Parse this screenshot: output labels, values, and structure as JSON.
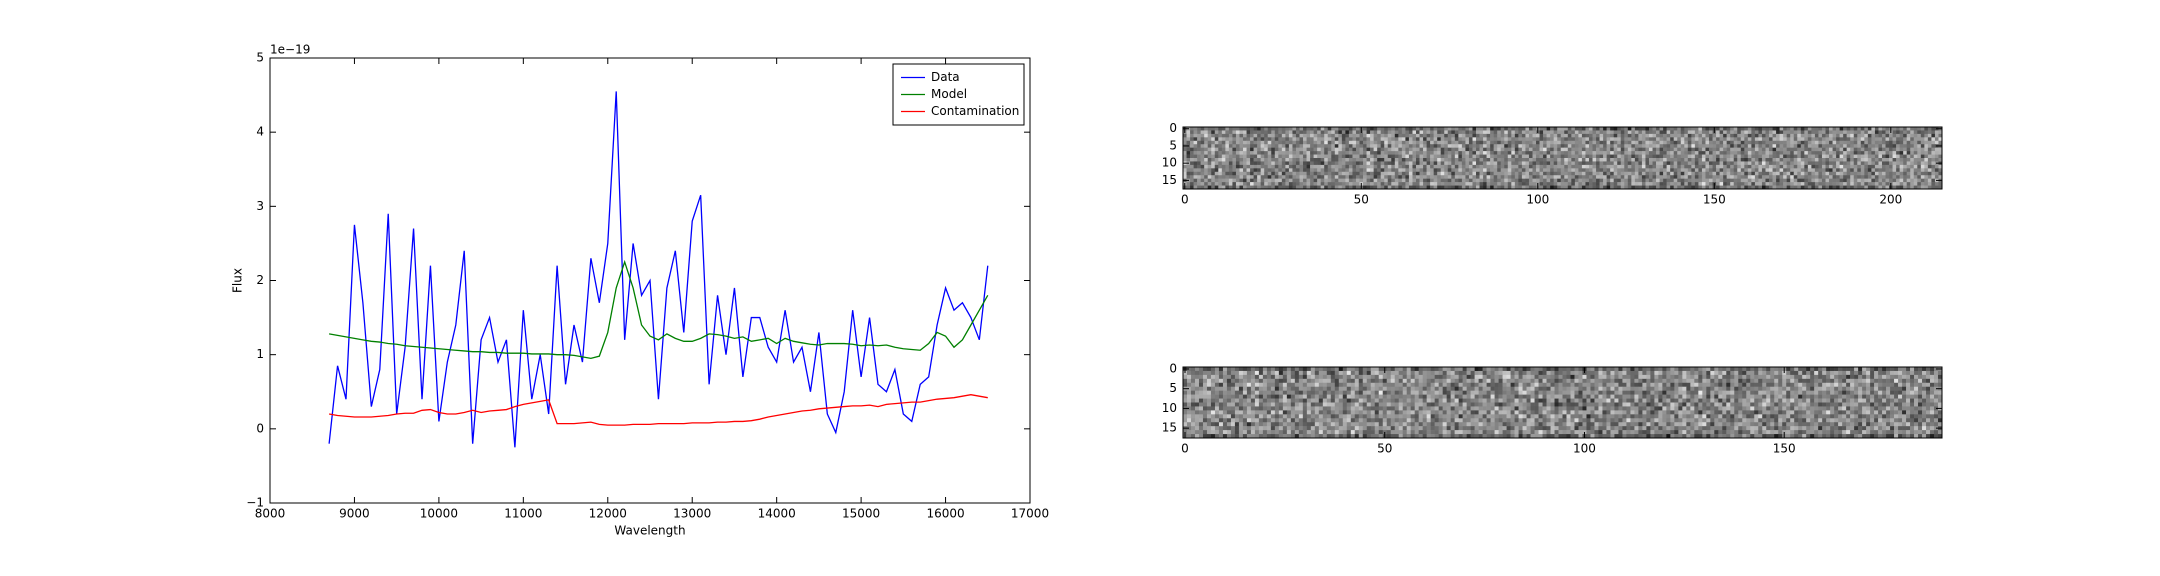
{
  "chart_data": [
    {
      "type": "line",
      "xlabel": "Wavelength",
      "ylabel": "Flux",
      "offset_label": "1e−19",
      "xlim": [
        8000,
        17000
      ],
      "xticks": [
        8000,
        9000,
        10000,
        11000,
        12000,
        13000,
        14000,
        15000,
        16000,
        17000
      ],
      "ylim": [
        -1,
        5
      ],
      "yticks": [
        {
          "value": -1,
          "label": "−1"
        },
        0,
        1,
        2,
        3,
        4,
        5
      ],
      "legend": "upper right",
      "x": [
        8700,
        8800,
        8900,
        9000,
        9100,
        9200,
        9300,
        9400,
        9500,
        9600,
        9700,
        9800,
        9900,
        10000,
        10100,
        10200,
        10300,
        10400,
        10500,
        10600,
        10700,
        10800,
        10900,
        11000,
        11100,
        11200,
        11300,
        11400,
        11500,
        11600,
        11700,
        11800,
        11900,
        12000,
        12100,
        12200,
        12300,
        12400,
        12500,
        12600,
        12700,
        12800,
        12900,
        13000,
        13100,
        13200,
        13300,
        13400,
        13500,
        13600,
        13700,
        13800,
        13900,
        14000,
        14100,
        14200,
        14300,
        14400,
        14500,
        14600,
        14700,
        14800,
        14900,
        15000,
        15100,
        15200,
        15300,
        15400,
        15500,
        15600,
        15700,
        15800,
        15900,
        16000,
        16100,
        16200,
        16300,
        16400,
        16500
      ],
      "series": [
        {
          "name": "Data",
          "color": "#0000ff",
          "values": [
            -0.2,
            0.85,
            0.4,
            2.75,
            1.7,
            0.3,
            0.8,
            2.9,
            0.2,
            1.1,
            2.7,
            0.4,
            2.2,
            0.1,
            0.9,
            1.4,
            2.4,
            -0.2,
            1.2,
            1.5,
            0.9,
            1.2,
            -0.25,
            1.6,
            0.4,
            1.0,
            0.2,
            2.2,
            0.6,
            1.4,
            0.9,
            2.3,
            1.7,
            2.5,
            4.55,
            1.2,
            2.5,
            1.8,
            2.0,
            0.4,
            1.9,
            2.4,
            1.3,
            2.8,
            3.15,
            0.6,
            1.8,
            1.0,
            1.9,
            0.7,
            1.5,
            1.5,
            1.1,
            0.9,
            1.6,
            0.9,
            1.1,
            0.5,
            1.3,
            0.2,
            -0.05,
            0.5,
            1.6,
            0.7,
            1.5,
            0.6,
            0.5,
            0.8,
            0.2,
            0.1,
            0.6,
            0.7,
            1.4,
            1.9,
            1.6,
            1.7,
            1.5,
            1.2,
            2.2
          ]
        },
        {
          "name": "Model",
          "color": "#008000",
          "values": [
            1.28,
            1.26,
            1.24,
            1.22,
            1.2,
            1.18,
            1.17,
            1.15,
            1.14,
            1.12,
            1.11,
            1.1,
            1.09,
            1.08,
            1.07,
            1.06,
            1.05,
            1.04,
            1.04,
            1.03,
            1.03,
            1.02,
            1.02,
            1.02,
            1.01,
            1.01,
            1.01,
            1.0,
            1.0,
            0.99,
            0.97,
            0.95,
            0.98,
            1.3,
            1.9,
            2.25,
            1.9,
            1.4,
            1.25,
            1.2,
            1.28,
            1.22,
            1.18,
            1.18,
            1.22,
            1.28,
            1.27,
            1.25,
            1.22,
            1.24,
            1.18,
            1.2,
            1.22,
            1.15,
            1.22,
            1.18,
            1.16,
            1.14,
            1.13,
            1.15,
            1.15,
            1.15,
            1.14,
            1.12,
            1.13,
            1.12,
            1.13,
            1.1,
            1.08,
            1.07,
            1.06,
            1.15,
            1.3,
            1.25,
            1.1,
            1.2,
            1.4,
            1.6,
            1.8
          ]
        },
        {
          "name": "Contamination",
          "color": "#ff0000",
          "values": [
            0.2,
            0.18,
            0.17,
            0.16,
            0.16,
            0.16,
            0.17,
            0.18,
            0.2,
            0.21,
            0.21,
            0.25,
            0.26,
            0.22,
            0.2,
            0.2,
            0.22,
            0.25,
            0.22,
            0.24,
            0.25,
            0.26,
            0.3,
            0.33,
            0.35,
            0.37,
            0.39,
            0.07,
            0.07,
            0.07,
            0.08,
            0.09,
            0.06,
            0.05,
            0.05,
            0.05,
            0.06,
            0.06,
            0.06,
            0.07,
            0.07,
            0.07,
            0.07,
            0.08,
            0.08,
            0.08,
            0.09,
            0.09,
            0.1,
            0.1,
            0.11,
            0.13,
            0.16,
            0.18,
            0.2,
            0.22,
            0.24,
            0.25,
            0.27,
            0.28,
            0.29,
            0.3,
            0.31,
            0.31,
            0.32,
            0.3,
            0.33,
            0.34,
            0.35,
            0.36,
            0.36,
            0.38,
            0.4,
            0.41,
            0.42,
            0.44,
            0.46,
            0.44,
            0.42
          ]
        }
      ]
    },
    {
      "type": "image",
      "xlim": [
        -0.5,
        214.5
      ],
      "xticks": [
        0,
        50,
        100,
        150,
        200
      ],
      "ylim": [
        17.5,
        -0.5
      ],
      "yticks": [
        0,
        5,
        10,
        15
      ]
    },
    {
      "type": "image",
      "xlim": [
        -0.5,
        189.5
      ],
      "xticks": [
        0,
        50,
        100,
        150
      ],
      "ylim": [
        17.5,
        -0.5
      ],
      "yticks": [
        0,
        5,
        10,
        15
      ]
    }
  ]
}
